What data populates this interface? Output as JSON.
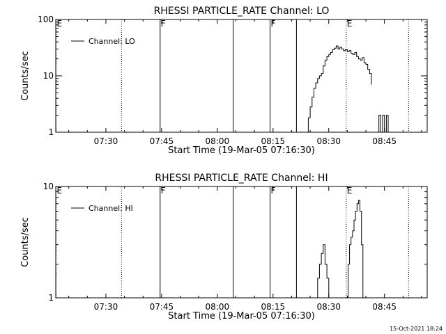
{
  "footer": {
    "timestamp": "15-Oct-2021 18:24"
  },
  "chart_data": [
    {
      "type": "line",
      "title": "RHESSI PARTICLE_RATE Channel: LO",
      "xlabel": "Start Time (19-Mar-05 07:16:30)",
      "ylabel": "Counts/sec",
      "yscale": "log",
      "ylim": [
        1,
        100
      ],
      "xlim_minutes": [
        16.5,
        116.5
      ],
      "yticks": [
        {
          "v": 1,
          "label": "1"
        },
        {
          "v": 10,
          "label": "10"
        },
        {
          "v": 100,
          "label": "100"
        }
      ],
      "xticks": [
        {
          "m": 30,
          "label": "07:30"
        },
        {
          "m": 45,
          "label": "07:45"
        },
        {
          "m": 60,
          "label": "08:00"
        },
        {
          "m": 75,
          "label": "08:15"
        },
        {
          "m": 90,
          "label": "08:30"
        },
        {
          "m": 105,
          "label": "08:45"
        }
      ],
      "legend": {
        "position": "top-left",
        "entries": [
          "Channel: LO"
        ]
      },
      "events": [
        {
          "m": 16.6,
          "label": "E",
          "style": "dotted"
        },
        {
          "m": 34.2,
          "label": "",
          "style": "dotted"
        },
        {
          "m": 44.6,
          "label": "F",
          "style": "solid"
        },
        {
          "m": 64.3,
          "label": "",
          "style": "solid"
        },
        {
          "m": 74.2,
          "label": "F",
          "style": "solid"
        },
        {
          "m": 81.3,
          "label": "",
          "style": "solid"
        },
        {
          "m": 94.7,
          "label": "E",
          "style": "dotted"
        },
        {
          "m": 111.5,
          "label": "",
          "style": "dotted"
        }
      ],
      "series": [
        {
          "x": [
            84.0,
            84.5,
            85.0,
            85.5,
            86.0,
            86.5,
            87.0,
            87.5,
            88.0,
            88.5,
            89.0,
            89.5,
            90.0,
            90.5,
            91.0,
            91.5,
            92.0,
            92.5,
            93.0,
            93.5,
            94.0,
            94.5,
            95.0,
            95.5,
            96.0,
            96.5,
            97.0,
            97.5,
            98.0,
            98.5,
            99.0,
            99.5,
            100.0,
            100.5,
            101.0,
            101.5
          ],
          "values": [
            1,
            1.8,
            2.8,
            4.2,
            6,
            7.5,
            9,
            10,
            11,
            15,
            19,
            22,
            24,
            26,
            29,
            31,
            34,
            30,
            32,
            30,
            28,
            29,
            27,
            28,
            25,
            24,
            26,
            22,
            20,
            19,
            21,
            17,
            16,
            13,
            11,
            7
          ],
          "segments": [
            [
              0,
              35
            ]
          ]
        },
        {
          "x": [
            103.0,
            103.5,
            104.0,
            104.5,
            105.0,
            105.5,
            106.0
          ],
          "values": [
            1,
            2,
            1,
            2,
            1,
            2,
            1
          ],
          "segments": [
            [
              0,
              6
            ]
          ]
        }
      ]
    },
    {
      "type": "line",
      "title": "RHESSI PARTICLE_RATE Channel: HI",
      "xlabel": "Start Time (19-Mar-05 07:16:30)",
      "ylabel": "Counts/sec",
      "yscale": "log",
      "ylim": [
        1,
        10
      ],
      "xlim_minutes": [
        16.5,
        116.5
      ],
      "yticks": [
        {
          "v": 1,
          "label": "1"
        },
        {
          "v": 10,
          "label": "10"
        }
      ],
      "xticks": [
        {
          "m": 30,
          "label": "07:30"
        },
        {
          "m": 45,
          "label": "07:45"
        },
        {
          "m": 60,
          "label": "08:00"
        },
        {
          "m": 75,
          "label": "08:15"
        },
        {
          "m": 90,
          "label": "08:30"
        },
        {
          "m": 105,
          "label": "08:45"
        }
      ],
      "legend": {
        "position": "top-left",
        "entries": [
          "Channel: HI"
        ]
      },
      "events": [
        {
          "m": 16.6,
          "label": "E",
          "style": "dotted"
        },
        {
          "m": 34.2,
          "label": "",
          "style": "dotted"
        },
        {
          "m": 44.6,
          "label": "F",
          "style": "solid"
        },
        {
          "m": 64.3,
          "label": "",
          "style": "solid"
        },
        {
          "m": 74.2,
          "label": "F",
          "style": "solid"
        },
        {
          "m": 81.3,
          "label": "",
          "style": "solid"
        },
        {
          "m": 94.7,
          "label": "E",
          "style": "dotted"
        },
        {
          "m": 111.5,
          "label": "",
          "style": "dotted"
        }
      ],
      "series": [
        {
          "x": [
            86.6,
            87.0,
            87.5,
            88.0,
            88.5,
            89.0,
            89.5,
            90.0
          ],
          "values": [
            1,
            1.5,
            2,
            2.5,
            3,
            2,
            1.5,
            1
          ]
        },
        {
          "x": [
            94.8,
            95.2,
            95.6,
            96.0,
            96.4,
            96.8,
            97.2,
            97.6,
            98.0,
            98.4,
            98.8,
            99.2
          ],
          "values": [
            1,
            2,
            3,
            3.5,
            4,
            5,
            6,
            7,
            7.5,
            6,
            3,
            1
          ]
        }
      ]
    }
  ]
}
